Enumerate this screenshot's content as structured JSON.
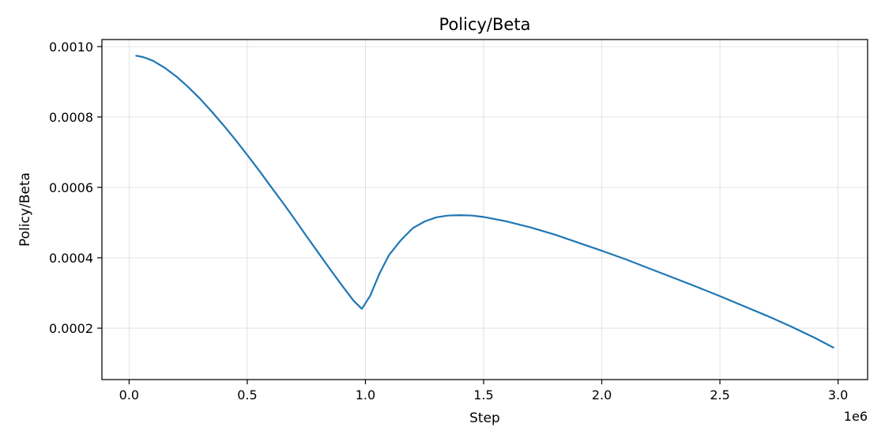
{
  "chart_data": {
    "type": "line",
    "title": "Policy/Beta",
    "xlabel": "Step",
    "ylabel": "Policy/Beta",
    "x_offset_label": "1e6",
    "x_scale": 1000000,
    "xlim": [
      -0.115,
      3.125
    ],
    "ylim": [
      5.4e-05,
      0.00102
    ],
    "x_ticks": [
      0.0,
      0.5,
      1.0,
      1.5,
      2.0,
      2.5,
      3.0
    ],
    "x_tick_labels": [
      "0.0",
      "0.5",
      "1.0",
      "1.5",
      "2.0",
      "2.5",
      "3.0"
    ],
    "y_ticks": [
      0.0002,
      0.0004,
      0.0006,
      0.0008,
      0.001
    ],
    "y_tick_labels": [
      "0.0002",
      "0.0004",
      "0.0006",
      "0.0008",
      "0.0010"
    ],
    "grid": true,
    "series": [
      {
        "color": "#1f77b4",
        "x": [
          0.03,
          0.06,
          0.1,
          0.15,
          0.2,
          0.25,
          0.3,
          0.35,
          0.4,
          0.45,
          0.5,
          0.55,
          0.6,
          0.65,
          0.7,
          0.75,
          0.8,
          0.85,
          0.9,
          0.95,
          0.985,
          1.02,
          1.06,
          1.1,
          1.15,
          1.2,
          1.25,
          1.3,
          1.35,
          1.4,
          1.45,
          1.5,
          1.6,
          1.7,
          1.8,
          1.9,
          2.0,
          2.1,
          2.2,
          2.3,
          2.4,
          2.5,
          2.6,
          2.7,
          2.8,
          2.9,
          2.98
        ],
        "y": [
          0.000974,
          0.00097,
          0.00096,
          0.00094,
          0.000915,
          0.000885,
          0.000852,
          0.000815,
          0.000776,
          0.000735,
          0.000692,
          0.000648,
          0.000602,
          0.000557,
          0.00051,
          0.000462,
          0.000415,
          0.000368,
          0.000322,
          0.000278,
          0.000255,
          0.000292,
          0.000356,
          0.000408,
          0.00045,
          0.000484,
          0.000503,
          0.000515,
          0.00052,
          0.000521,
          0.00052,
          0.000516,
          0.000503,
          0.000486,
          0.000466,
          0.000443,
          0.00042,
          0.000396,
          0.00037,
          0.000344,
          0.000318,
          0.000291,
          0.000263,
          0.000235,
          0.000205,
          0.000173,
          0.000145
        ]
      }
    ]
  }
}
